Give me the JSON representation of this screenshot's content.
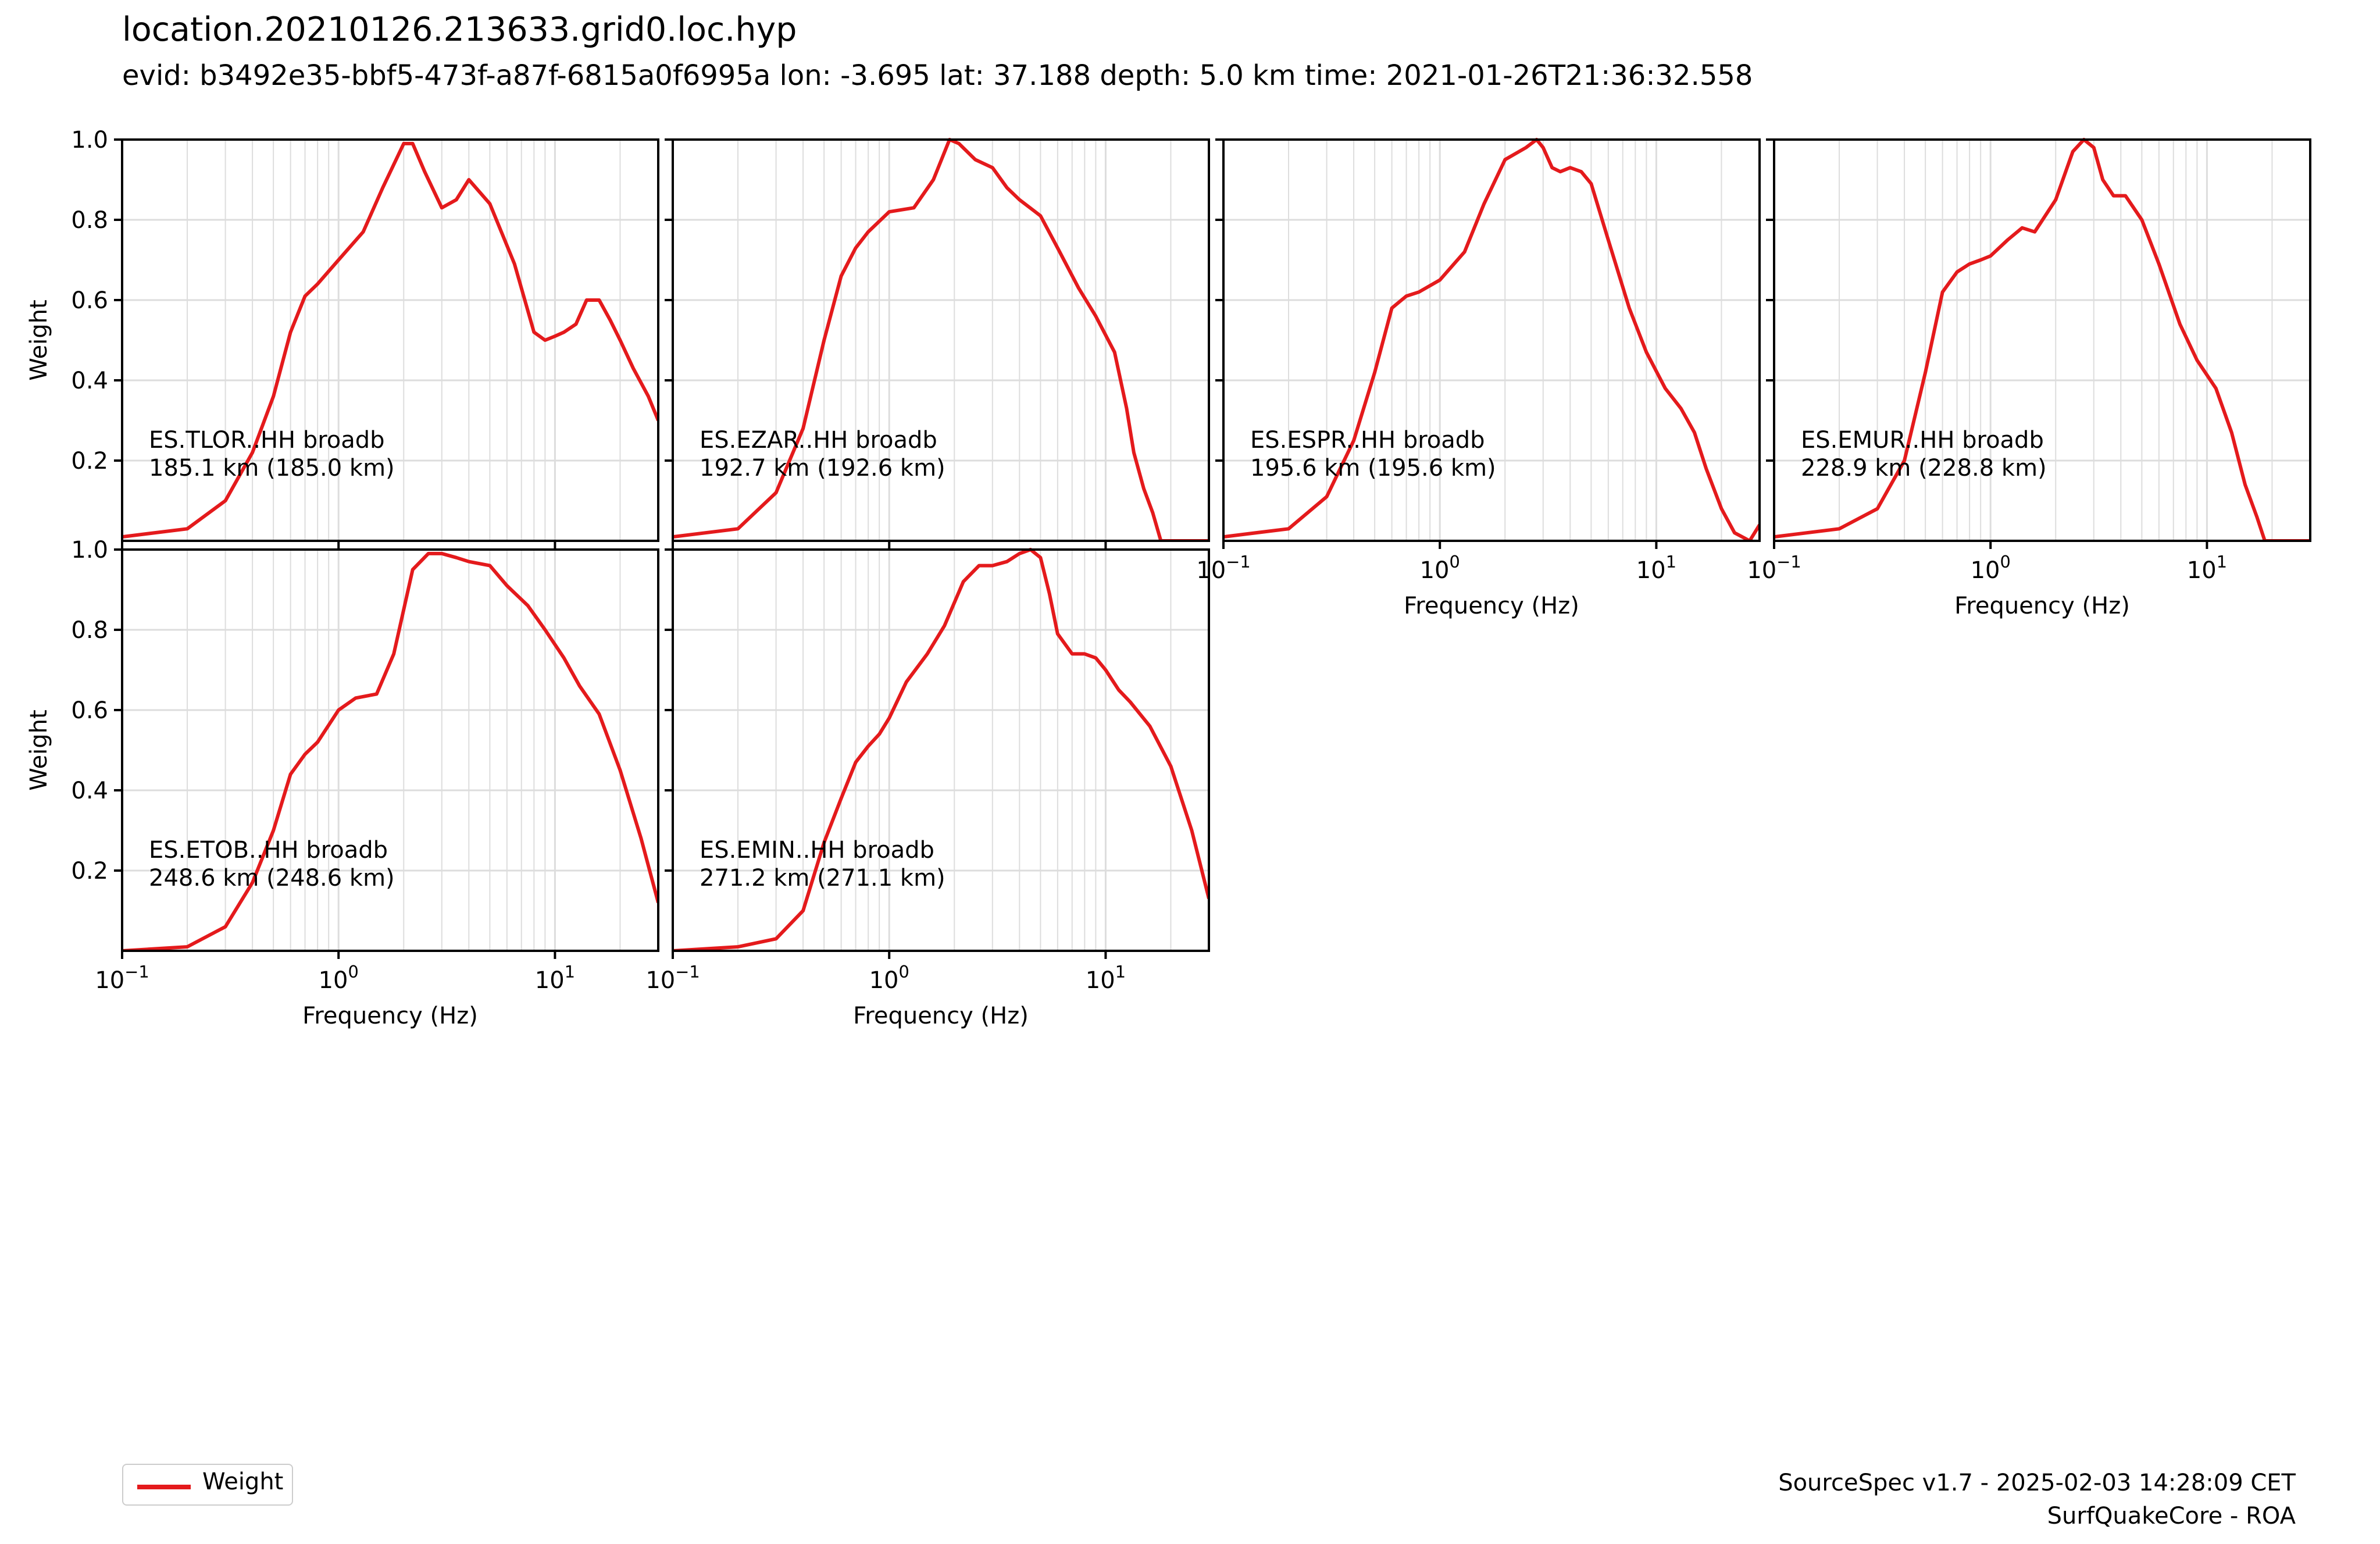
{
  "figure": {
    "title": "location.20210126.213633.grid0.loc.hyp",
    "subtitle": "evid: b3492e35-bbf5-473f-a87f-6815a0f6995a lon: -3.695 lat: 37.188 depth: 5.0 km time: 2021-01-26T21:36:32.558",
    "legend_label": "Weight",
    "footer_line1": "SourceSpec v1.7 - 2025-02-03 14:28:09 CET",
    "footer_line2": "SurfQuakeCore - ROA",
    "line_color": "#e41a1c",
    "grid_color": "#dddddd"
  },
  "chart_data": [
    {
      "type": "line",
      "xscale": "log",
      "xlim": [
        0.1,
        30
      ],
      "ylim": [
        0,
        1.0
      ],
      "grid": true,
      "xlabel": "",
      "ylabel": "Weight",
      "xticks_visible": false,
      "annotation": [
        "ES.TLOR..HH broadb",
        "185.1 km (185.0 km)"
      ],
      "series": [
        {
          "x": [
            0.1,
            0.2,
            0.3,
            0.4,
            0.5,
            0.6,
            0.7,
            0.8,
            1.0,
            1.3,
            1.6,
            2.0,
            2.2,
            2.5,
            3.0,
            3.5,
            4.0,
            5.0,
            6.5,
            8.0,
            9.0,
            10.0,
            11.0,
            12.5,
            14.0,
            16.0,
            18.0,
            20.0,
            23.0,
            27.0,
            30.0
          ],
          "y": [
            0.01,
            0.03,
            0.1,
            0.22,
            0.36,
            0.52,
            0.61,
            0.64,
            0.7,
            0.77,
            0.88,
            0.99,
            0.99,
            0.92,
            0.83,
            0.85,
            0.9,
            0.84,
            0.69,
            0.52,
            0.5,
            0.51,
            0.52,
            0.54,
            0.6,
            0.6,
            0.55,
            0.5,
            0.43,
            0.36,
            0.3
          ]
        }
      ]
    },
    {
      "type": "line",
      "xscale": "log",
      "xlim": [
        0.1,
        30
      ],
      "ylim": [
        0,
        1.0
      ],
      "grid": true,
      "xlabel": "",
      "ylabel": "",
      "xticks_visible": false,
      "annotation": [
        "ES.EZAR..HH broadb",
        "192.7 km (192.6 km)"
      ],
      "series": [
        {
          "x": [
            0.1,
            0.2,
            0.3,
            0.4,
            0.5,
            0.6,
            0.7,
            0.8,
            1.0,
            1.3,
            1.6,
            1.9,
            2.1,
            2.5,
            3.0,
            3.5,
            4.0,
            5.0,
            6.0,
            7.5,
            9.0,
            11.0,
            12.5,
            13.5,
            15.0,
            16.5,
            18.0,
            20.0,
            30.0
          ],
          "y": [
            0.01,
            0.03,
            0.12,
            0.28,
            0.5,
            0.66,
            0.73,
            0.77,
            0.82,
            0.83,
            0.9,
            1.0,
            0.99,
            0.95,
            0.93,
            0.88,
            0.85,
            0.81,
            0.73,
            0.63,
            0.56,
            0.47,
            0.33,
            0.22,
            0.13,
            0.07,
            0.0,
            0.0,
            0.0
          ]
        }
      ]
    },
    {
      "type": "line",
      "xscale": "log",
      "xlim": [
        0.1,
        30
      ],
      "ylim": [
        0,
        1.0
      ],
      "grid": true,
      "xlabel": "Frequency (Hz)",
      "ylabel": "",
      "xticks_visible": true,
      "annotation": [
        "ES.ESPR..HH broadb",
        "195.6 km (195.6 km)"
      ],
      "series": [
        {
          "x": [
            0.1,
            0.2,
            0.3,
            0.4,
            0.5,
            0.6,
            0.7,
            0.8,
            1.0,
            1.3,
            1.6,
            2.0,
            2.5,
            2.8,
            3.0,
            3.3,
            3.6,
            4.0,
            4.5,
            5.0,
            6.0,
            7.5,
            9.0,
            11.0,
            13.0,
            15.0,
            17.0,
            20.0,
            23.0,
            27.0,
            30.0
          ],
          "y": [
            0.01,
            0.03,
            0.11,
            0.25,
            0.42,
            0.58,
            0.61,
            0.62,
            0.65,
            0.72,
            0.84,
            0.95,
            0.98,
            1.0,
            0.98,
            0.93,
            0.92,
            0.93,
            0.92,
            0.89,
            0.75,
            0.58,
            0.47,
            0.38,
            0.33,
            0.27,
            0.18,
            0.08,
            0.02,
            0.0,
            0.04
          ]
        }
      ]
    },
    {
      "type": "line",
      "xscale": "log",
      "xlim": [
        0.1,
        30
      ],
      "ylim": [
        0,
        1.0
      ],
      "grid": true,
      "xlabel": "Frequency (Hz)",
      "ylabel": "",
      "xticks_visible": true,
      "annotation": [
        "ES.EMUR..HH broadb",
        "228.9 km (228.8 km)"
      ],
      "series": [
        {
          "x": [
            0.1,
            0.2,
            0.3,
            0.4,
            0.5,
            0.6,
            0.7,
            0.8,
            0.9,
            1.0,
            1.2,
            1.4,
            1.6,
            2.0,
            2.4,
            2.7,
            3.0,
            3.3,
            3.7,
            4.2,
            5.0,
            6.0,
            7.5,
            9.0,
            11.0,
            13.0,
            15.0,
            17.0,
            18.5,
            20.0,
            30.0
          ],
          "y": [
            0.01,
            0.03,
            0.08,
            0.2,
            0.42,
            0.62,
            0.67,
            0.69,
            0.7,
            0.71,
            0.75,
            0.78,
            0.77,
            0.85,
            0.97,
            1.0,
            0.98,
            0.9,
            0.86,
            0.86,
            0.8,
            0.69,
            0.54,
            0.45,
            0.38,
            0.27,
            0.14,
            0.06,
            0.0,
            0.0,
            0.0
          ]
        }
      ]
    },
    {
      "type": "line",
      "xscale": "log",
      "xlim": [
        0.1,
        30
      ],
      "ylim": [
        0,
        1.0
      ],
      "grid": true,
      "xlabel": "Frequency (Hz)",
      "ylabel": "Weight",
      "xticks_visible": true,
      "annotation": [
        "ES.ETOB..HH broadb",
        "248.6 km (248.6 km)"
      ],
      "series": [
        {
          "x": [
            0.1,
            0.2,
            0.3,
            0.4,
            0.5,
            0.6,
            0.7,
            0.8,
            1.0,
            1.2,
            1.5,
            1.8,
            2.2,
            2.6,
            3.0,
            3.5,
            4.0,
            5.0,
            6.0,
            7.5,
            9.0,
            11.0,
            13.0,
            16.0,
            20.0,
            25.0,
            30.0
          ],
          "y": [
            0.0,
            0.01,
            0.06,
            0.17,
            0.3,
            0.44,
            0.49,
            0.52,
            0.6,
            0.63,
            0.64,
            0.74,
            0.95,
            0.99,
            0.99,
            0.98,
            0.97,
            0.96,
            0.91,
            0.86,
            0.8,
            0.73,
            0.66,
            0.59,
            0.45,
            0.28,
            0.12
          ]
        }
      ]
    },
    {
      "type": "line",
      "xscale": "log",
      "xlim": [
        0.1,
        30
      ],
      "ylim": [
        0,
        1.0
      ],
      "grid": true,
      "xlabel": "Frequency (Hz)",
      "ylabel": "",
      "xticks_visible": true,
      "annotation": [
        "ES.EMIN..HH broadb",
        "271.2 km (271.1 km)"
      ],
      "series": [
        {
          "x": [
            0.1,
            0.2,
            0.3,
            0.4,
            0.5,
            0.6,
            0.7,
            0.8,
            0.9,
            1.0,
            1.2,
            1.5,
            1.8,
            2.2,
            2.6,
            3.0,
            3.5,
            4.0,
            4.5,
            5.0,
            5.5,
            6.0,
            7.0,
            8.0,
            9.0,
            10.0,
            11.5,
            13.0,
            16.0,
            20.0,
            25.0,
            30.0
          ],
          "y": [
            0.0,
            0.01,
            0.03,
            0.1,
            0.27,
            0.38,
            0.47,
            0.51,
            0.54,
            0.58,
            0.67,
            0.74,
            0.81,
            0.92,
            0.96,
            0.96,
            0.97,
            0.99,
            1.0,
            0.98,
            0.89,
            0.79,
            0.74,
            0.74,
            0.73,
            0.7,
            0.65,
            0.62,
            0.56,
            0.46,
            0.3,
            0.13
          ]
        }
      ]
    }
  ]
}
